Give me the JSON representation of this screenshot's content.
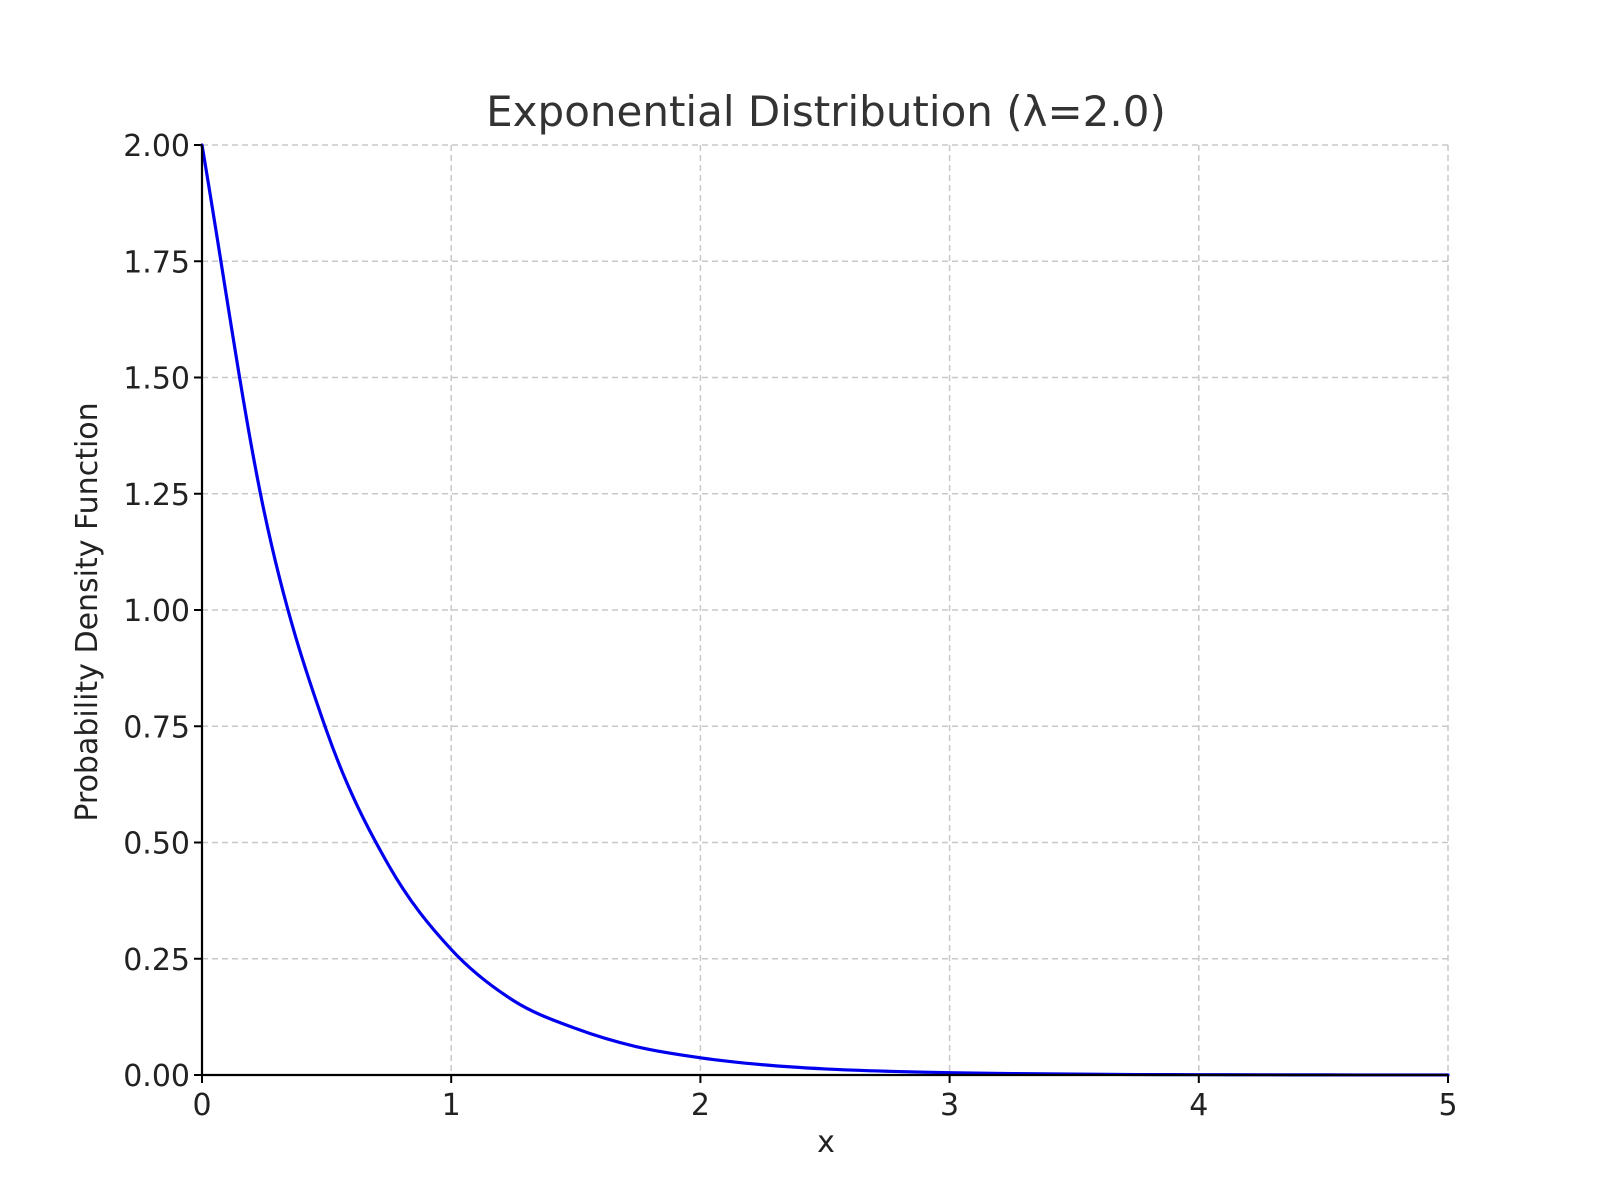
{
  "chart_data": {
    "type": "line",
    "title": "Exponential Distribution (λ=2.0)",
    "xlabel": "x",
    "ylabel": "Probability Density Function",
    "xlim": [
      0,
      5
    ],
    "ylim": [
      0,
      2
    ],
    "x_ticks": [
      "0",
      "1",
      "2",
      "3",
      "4",
      "5"
    ],
    "y_ticks": [
      "0.00",
      "0.25",
      "0.50",
      "0.75",
      "1.00",
      "1.25",
      "1.50",
      "1.75",
      "2.00"
    ],
    "grid": true,
    "legend": "none",
    "series": [
      {
        "color": "#0000ee",
        "x": [
          0,
          0.25,
          0.5,
          0.75,
          1.0,
          1.25,
          1.5,
          1.75,
          2.0,
          2.25,
          2.5,
          2.75,
          3.0,
          3.25,
          3.5,
          3.75,
          4.0,
          4.25,
          4.5,
          4.75,
          5.0
        ],
        "y": [
          2.0,
          1.21,
          0.74,
          0.45,
          0.27,
          0.16,
          0.1,
          0.06,
          0.037,
          0.022,
          0.013,
          0.008,
          0.005,
          0.003,
          0.002,
          0.001,
          0.0007,
          0.0004,
          0.0002,
          0.0001,
          0.0001
        ]
      }
    ]
  }
}
